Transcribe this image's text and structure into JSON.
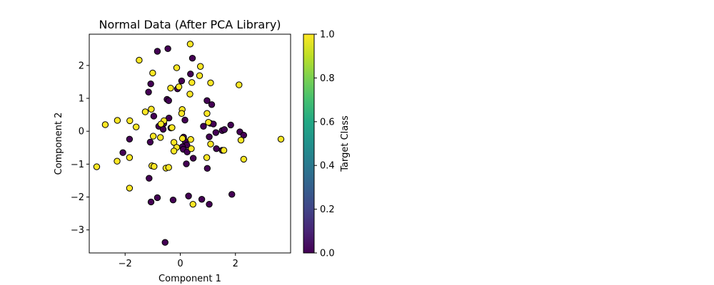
{
  "chart_data": {
    "type": "scatter",
    "title": "Normal Data (After PCA Library)",
    "xlabel": "Component 1",
    "ylabel": "Component 2",
    "xlim": [
      -3.3,
      4.0
    ],
    "ylim": [
      -3.7,
      2.95
    ],
    "x_ticks": [
      -2,
      0,
      2
    ],
    "x_tick_labels": [
      "−2",
      "0",
      "2"
    ],
    "y_ticks": [
      -3,
      -2,
      -1,
      0,
      1,
      2
    ],
    "y_tick_labels": [
      "−3",
      "−2",
      "−1",
      "0",
      "1",
      "2"
    ],
    "grid": false,
    "colorbar": {
      "label": "Target Class",
      "colormap": "viridis",
      "range": [
        0.0,
        1.0
      ],
      "ticks": [
        0.0,
        0.2,
        0.4,
        0.6,
        0.8,
        1.0
      ],
      "tick_labels": [
        "0.0",
        "0.2",
        "0.4",
        "0.6",
        "0.8",
        "1.0"
      ]
    },
    "colors": {
      "class0": "#440154",
      "class1": "#fde725",
      "edge": "#000000"
    },
    "series": [
      {
        "values": [
          [
            -0.83,
            2.43
          ],
          [
            -0.45,
            2.51
          ],
          [
            0.44,
            2.22
          ],
          [
            0.37,
            1.74
          ],
          [
            0.05,
            1.53
          ],
          [
            -1.07,
            1.44
          ],
          [
            -1.15,
            1.19
          ],
          [
            -0.1,
            1.29
          ],
          [
            -0.48,
            0.97
          ],
          [
            -0.42,
            0.93
          ],
          [
            0.97,
            0.93
          ],
          [
            1.14,
            0.81
          ],
          [
            -0.96,
            0.46
          ],
          [
            -0.41,
            0.4
          ],
          [
            0.17,
            0.34
          ],
          [
            -0.6,
            0.23
          ],
          [
            -0.78,
            0.15
          ],
          [
            -0.62,
            0.06
          ],
          [
            -0.34,
            0.1
          ],
          [
            0.84,
            0.15
          ],
          [
            1.09,
            0.24
          ],
          [
            1.2,
            0.22
          ],
          [
            1.83,
            0.19
          ],
          [
            1.52,
            0.02
          ],
          [
            1.6,
            0.05
          ],
          [
            2.16,
            -0.02
          ],
          [
            1.29,
            -0.04
          ],
          [
            2.3,
            -0.12
          ],
          [
            1.05,
            -0.17
          ],
          [
            -1.84,
            -0.24
          ],
          [
            -1.09,
            -0.33
          ],
          [
            0.12,
            -0.18
          ],
          [
            0.18,
            -0.31
          ],
          [
            0.24,
            -0.42
          ],
          [
            0.08,
            -0.47
          ],
          [
            0.11,
            -0.55
          ],
          [
            0.25,
            -0.63
          ],
          [
            0.47,
            -0.82
          ],
          [
            1.31,
            -0.53
          ],
          [
            1.52,
            -0.58
          ],
          [
            -2.08,
            -0.65
          ],
          [
            0.22,
            -0.99
          ],
          [
            0.98,
            -1.13
          ],
          [
            -1.13,
            -1.43
          ],
          [
            -0.83,
            -2.02
          ],
          [
            0.3,
            -1.97
          ],
          [
            0.78,
            -2.07
          ],
          [
            1.05,
            -2.22
          ],
          [
            1.87,
            -1.92
          ],
          [
            -1.06,
            -2.15
          ],
          [
            -0.26,
            -2.09
          ],
          [
            -0.55,
            -3.38
          ]
        ]
      },
      {
        "values": [
          [
            0.36,
            2.65
          ],
          [
            -1.49,
            2.16
          ],
          [
            -0.13,
            1.93
          ],
          [
            0.73,
            1.97
          ],
          [
            -1.0,
            1.77
          ],
          [
            0.7,
            1.69
          ],
          [
            0.42,
            1.48
          ],
          [
            1.1,
            1.47
          ],
          [
            2.13,
            1.41
          ],
          [
            -0.35,
            1.31
          ],
          [
            -0.05,
            1.35
          ],
          [
            0.35,
            1.13
          ],
          [
            -1.05,
            0.67
          ],
          [
            -1.27,
            0.59
          ],
          [
            0.07,
            0.66
          ],
          [
            0.05,
            0.54
          ],
          [
            0.97,
            0.54
          ],
          [
            -2.28,
            0.33
          ],
          [
            -1.83,
            0.32
          ],
          [
            -0.59,
            0.32
          ],
          [
            -0.7,
            0.22
          ],
          [
            -2.72,
            0.2
          ],
          [
            -1.6,
            0.13
          ],
          [
            -0.3,
            0.11
          ],
          [
            1.02,
            0.27
          ],
          [
            -0.98,
            -0.15
          ],
          [
            -0.72,
            -0.19
          ],
          [
            0.08,
            -0.22
          ],
          [
            0.38,
            -0.25
          ],
          [
            -0.23,
            -0.34
          ],
          [
            -0.13,
            -0.49
          ],
          [
            0.4,
            -0.53
          ],
          [
            1.1,
            -0.39
          ],
          [
            1.58,
            -0.58
          ],
          [
            -0.23,
            -0.6
          ],
          [
            2.2,
            -0.27
          ],
          [
            3.65,
            -0.24
          ],
          [
            -1.84,
            -0.8
          ],
          [
            0.96,
            -0.8
          ],
          [
            2.3,
            -0.85
          ],
          [
            -2.29,
            -0.91
          ],
          [
            -3.03,
            -1.08
          ],
          [
            -1.03,
            -1.05
          ],
          [
            -0.95,
            -1.07
          ],
          [
            -0.52,
            -1.12
          ],
          [
            -0.42,
            -1.1
          ],
          [
            -1.84,
            -1.73
          ],
          [
            0.46,
            -2.22
          ]
        ]
      }
    ]
  }
}
